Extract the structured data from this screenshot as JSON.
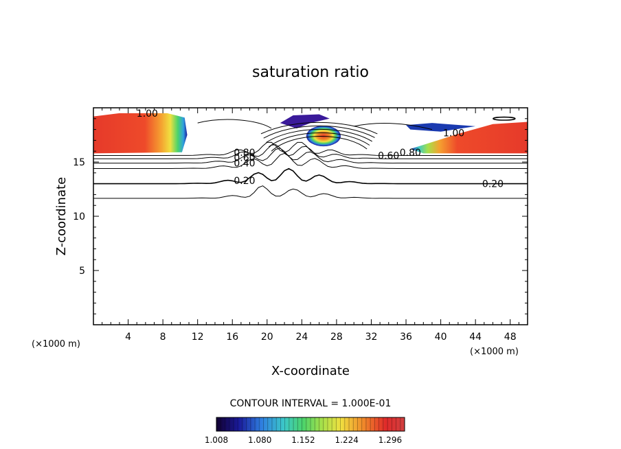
{
  "chart_data": {
    "type": "heatmap",
    "title": "saturation ratio",
    "xlabel": "X-coordinate",
    "ylabel": "Z-coordinate",
    "x_unit": "(×1000 m)",
    "y_unit": "(×1000 m)",
    "xlim": [
      0,
      50
    ],
    "ylim": [
      0,
      20
    ],
    "x_ticks": [
      4,
      8,
      12,
      16,
      20,
      24,
      28,
      32,
      36,
      40,
      44,
      48
    ],
    "y_ticks": [
      5,
      10,
      15
    ],
    "contour_interval_text": "CONTOUR INTERVAL = 1.000E-01",
    "colorbar": {
      "min": 1.008,
      "max": 1.32,
      "tick_values": [
        1.008,
        1.08,
        1.152,
        1.224,
        1.296
      ],
      "tick_labels": [
        "1.008",
        "1.080",
        "1.152",
        "1.224",
        "1.296"
      ]
    },
    "contour_labels": [
      {
        "text": "1.00",
        "x": 6.2,
        "z": 19.5
      },
      {
        "text": "0.80",
        "x": 17.4,
        "z": 15.9
      },
      {
        "text": "0.60",
        "x": 17.4,
        "z": 15.4
      },
      {
        "text": "0.40",
        "x": 17.4,
        "z": 14.9
      },
      {
        "text": "0.20",
        "x": 17.4,
        "z": 13.3
      },
      {
        "text": "0.60",
        "x": 34.0,
        "z": 15.6
      },
      {
        "text": "0.80",
        "x": 36.5,
        "z": 15.9
      },
      {
        "text": "1.00",
        "x": 41.5,
        "z": 17.7
      },
      {
        "text": "0.20",
        "x": 46.0,
        "z": 13.0
      }
    ],
    "regions": [
      {
        "name": "supersaturated-left",
        "x": [
          0,
          10.5
        ],
        "z": [
          15.8,
          19.5
        ],
        "peak": 1.3
      },
      {
        "name": "supersaturated-center",
        "x": [
          23.5,
          29
        ],
        "z": [
          16.6,
          18.2
        ],
        "peak": 1.27
      },
      {
        "name": "supersaturated-right",
        "x": [
          38,
          50
        ],
        "z": [
          15.8,
          18.6
        ],
        "peak": 1.3
      }
    ]
  }
}
